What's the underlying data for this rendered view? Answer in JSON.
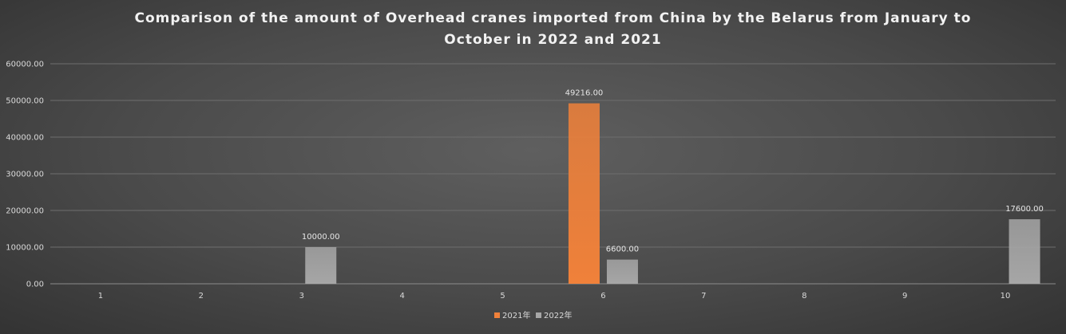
{
  "chart_data": {
    "type": "bar",
    "title_lines": [
      "Comparison of the amount of Overhead cranes imported from China by the Belarus from January to",
      "October in 2022 and 2021"
    ],
    "categories": [
      "1",
      "2",
      "3",
      "4",
      "5",
      "6",
      "7",
      "8",
      "9",
      "10"
    ],
    "series": [
      {
        "name": "2021年",
        "color": "#f0813a",
        "values": [
          0,
          0,
          0,
          0,
          0,
          49216,
          0,
          0,
          0,
          0
        ]
      },
      {
        "name": "2022年",
        "color": "#a6a6a6",
        "values": [
          0,
          0,
          10000,
          0,
          0,
          6600,
          0,
          0,
          0,
          17600
        ]
      }
    ],
    "data_labels": [
      {
        "series": 1,
        "index": 2,
        "text": "10000.00"
      },
      {
        "series": 0,
        "index": 5,
        "text": "49216.00"
      },
      {
        "series": 1,
        "index": 5,
        "text": "6600.00"
      },
      {
        "series": 1,
        "index": 9,
        "text": "17600.00"
      }
    ],
    "y_ticks": [
      "0.00",
      "10000.00",
      "20000.00",
      "30000.00",
      "40000.00",
      "50000.00",
      "60000.00"
    ],
    "ylim": [
      0,
      60000
    ],
    "grid": true,
    "legend_position": "bottom"
  }
}
